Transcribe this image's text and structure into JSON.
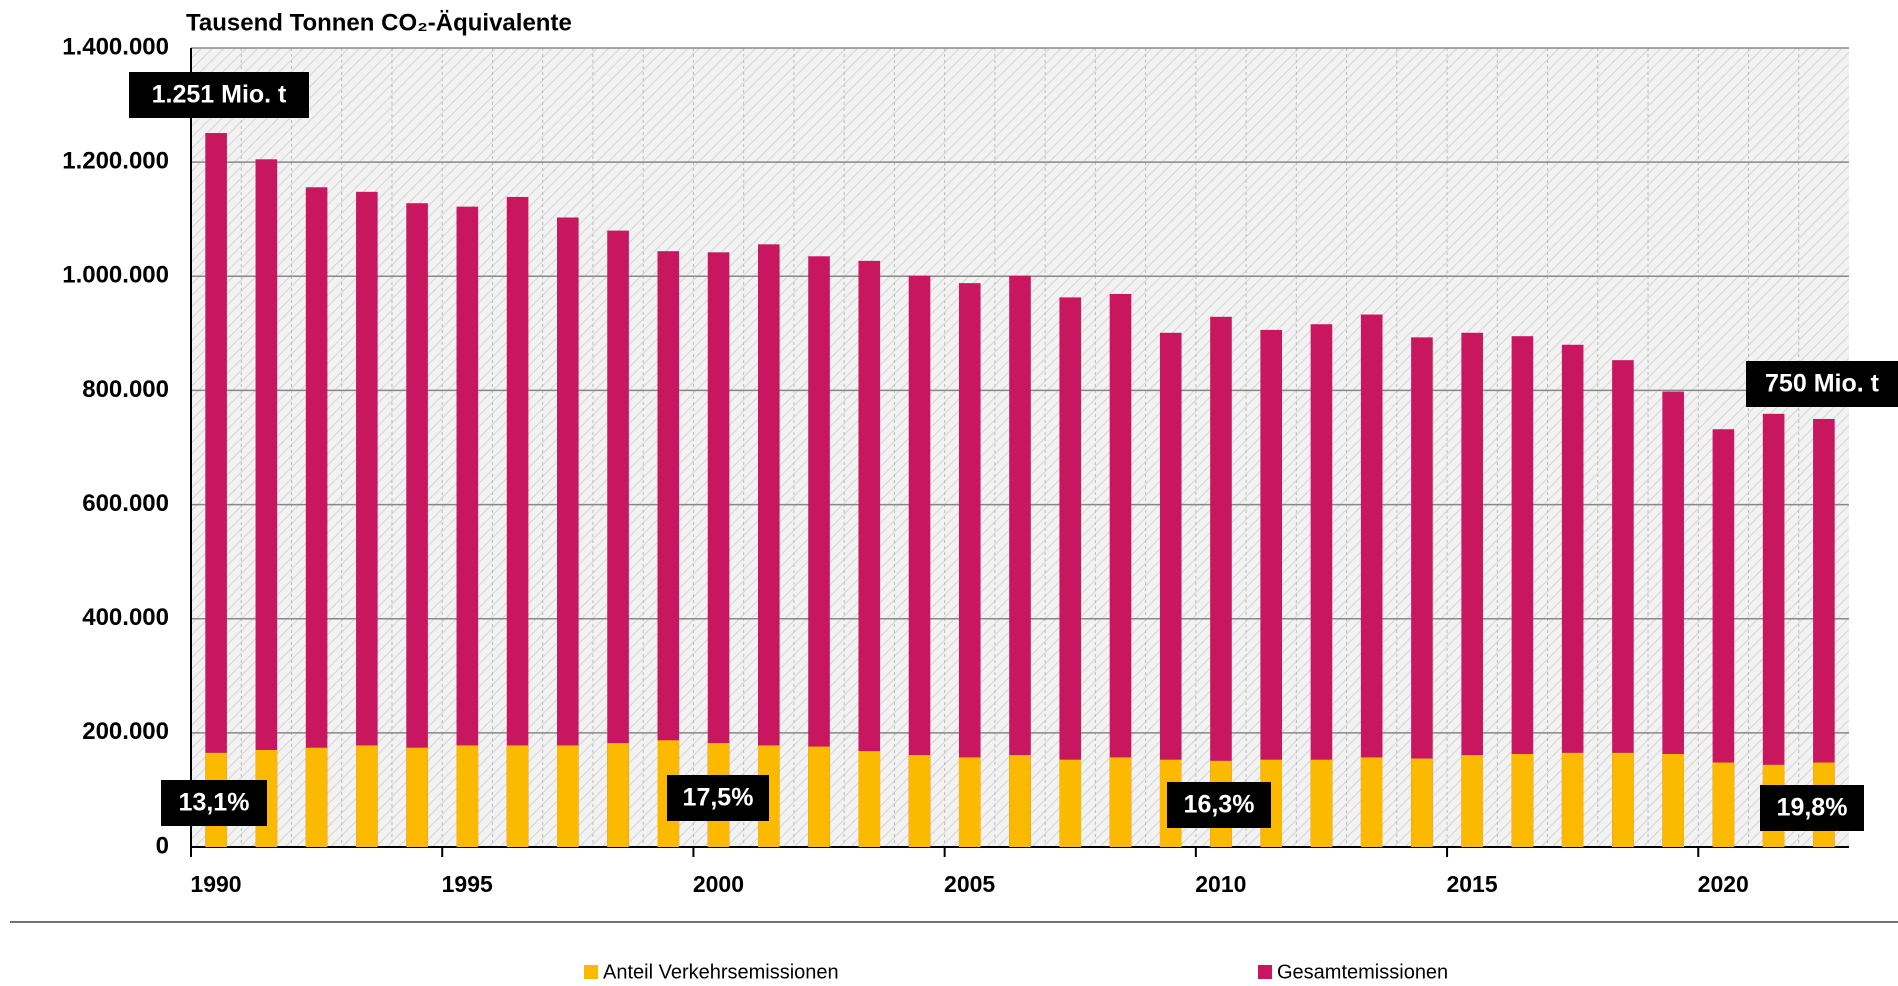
{
  "chart_data": {
    "type": "bar",
    "title": "Tausend Tonnen CO₂-Äquivalente",
    "categories": [
      "1990",
      null,
      null,
      null,
      null,
      "1995",
      null,
      null,
      null,
      null,
      "2000",
      null,
      null,
      null,
      null,
      "2005",
      null,
      null,
      null,
      null,
      "2010",
      null,
      null,
      null,
      null,
      "2015",
      null,
      null,
      null,
      null,
      "2020",
      null,
      null
    ],
    "series": [
      {
        "name": "Gesamtemissionen",
        "color": "#c8175e",
        "values": [
          1251000,
          1205000,
          1156000,
          1148000,
          1128000,
          1122000,
          1139000,
          1103000,
          1080000,
          1044000,
          1042000,
          1056000,
          1035000,
          1027000,
          1001000,
          988000,
          1001000,
          963000,
          969000,
          901000,
          929000,
          906000,
          916000,
          933000,
          893000,
          901000,
          895000,
          880000,
          853000,
          798000,
          732000,
          759000,
          750000
        ]
      },
      {
        "name": "Anteil Verkehrsemissionen",
        "color": "#fbb900",
        "values": [
          165000,
          170000,
          174000,
          178000,
          174000,
          178000,
          178000,
          178000,
          182000,
          187000,
          182000,
          178000,
          176000,
          168000,
          161000,
          157000,
          161000,
          153000,
          157000,
          153000,
          151000,
          153000,
          153000,
          157000,
          155000,
          161000,
          163000,
          165000,
          165000,
          163000,
          148000,
          144000,
          148000
        ]
      }
    ],
    "ylim": [
      0,
      1400000
    ],
    "yticks": [
      0,
      {
        "value": 200000,
        "label": "200.000"
      },
      {
        "value": 400000,
        "label": "400.000"
      },
      {
        "value": 600000,
        "label": "600.000"
      },
      {
        "value": 800000,
        "label": "800.000"
      },
      {
        "value": 1000000,
        "label": "1.000.000"
      },
      {
        "value": 1200000,
        "label": "1.200.000"
      },
      {
        "value": 1400000,
        "label": "1.400.000"
      }
    ],
    "grid": true,
    "annotations": [
      "1.251 Mio. t",
      "750 Mio. t",
      "13,1%",
      "17,5%",
      "16,3%",
      "19,8%"
    ]
  }
}
